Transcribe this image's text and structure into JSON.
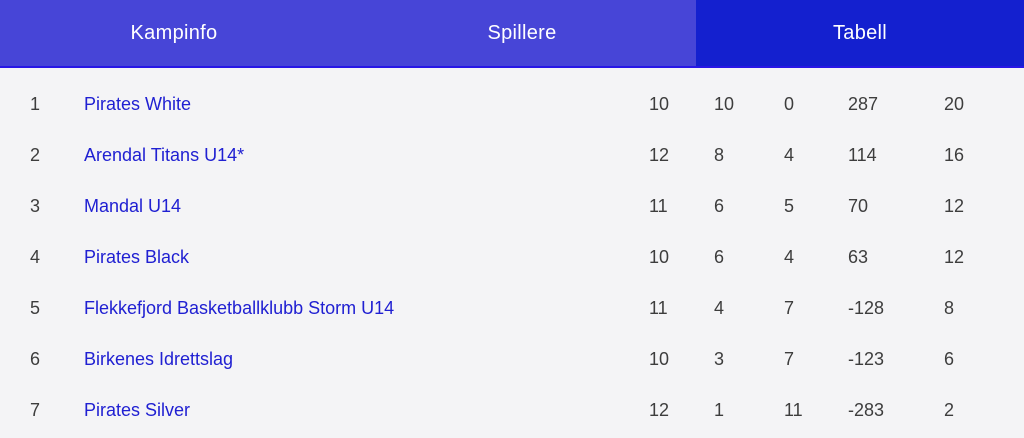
{
  "tabs": [
    {
      "label": "Kampinfo",
      "active": false
    },
    {
      "label": "Spillere",
      "active": false
    },
    {
      "label": "Tabell",
      "active": true
    }
  ],
  "colors": {
    "tabbar_background": "#4745d7",
    "active_tab_background": "#1420cf",
    "tabbar_underline": "#2817e6",
    "tab_text": "#ffffff",
    "page_background": "#f4f4f6",
    "team_link": "#2020d2",
    "table_text": "#3d3d3d"
  },
  "standings": {
    "rows": [
      {
        "rank": 1,
        "team": "Pirates White",
        "stats": [
          10,
          10,
          0,
          287,
          20
        ]
      },
      {
        "rank": 2,
        "team": "Arendal Titans U14*",
        "stats": [
          12,
          8,
          4,
          114,
          16
        ]
      },
      {
        "rank": 3,
        "team": "Mandal U14",
        "stats": [
          11,
          6,
          5,
          70,
          12
        ]
      },
      {
        "rank": 4,
        "team": "Pirates Black",
        "stats": [
          10,
          6,
          4,
          63,
          12
        ]
      },
      {
        "rank": 5,
        "team": "Flekkefjord Basketballklubb Storm U14",
        "stats": [
          11,
          4,
          7,
          -128,
          8
        ]
      },
      {
        "rank": 6,
        "team": "Birkenes Idrettslag",
        "stats": [
          10,
          3,
          7,
          -123,
          6
        ]
      },
      {
        "rank": 7,
        "team": "Pirates Silver",
        "stats": [
          12,
          1,
          11,
          -283,
          2
        ]
      }
    ]
  }
}
